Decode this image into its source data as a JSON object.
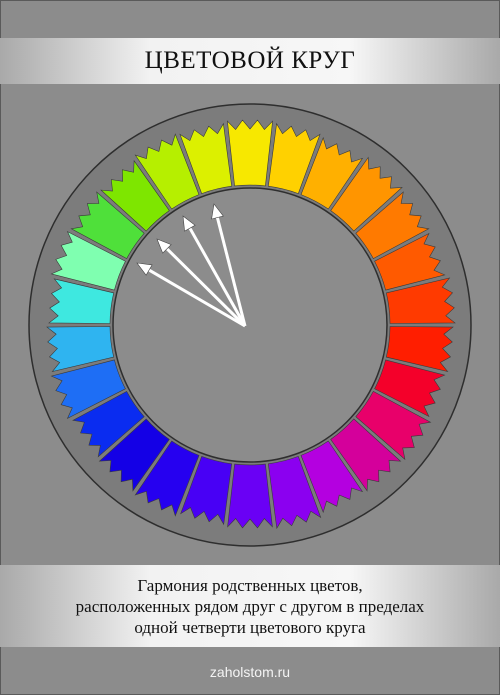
{
  "title": "ЦВЕТОВОЙ КРУГ",
  "caption": {
    "lines": [
      "Гармония родственных цветов,",
      "расположенных рядом друг с другом в пределах",
      "одной четверти цветового круга"
    ]
  },
  "footer": "zaholstom.ru",
  "wheel": {
    "segment_colors": [
      "#f7e800",
      "#ffd100",
      "#ffb000",
      "#ff9500",
      "#ff7a00",
      "#ff5a00",
      "#ff3a00",
      "#ff1e00",
      "#f4002a",
      "#e8006a",
      "#d4009b",
      "#b400e0",
      "#8b00f0",
      "#6a00f5",
      "#4800f5",
      "#2600f0",
      "#1400e6",
      "#0a2cf0",
      "#1e6ef5",
      "#2fb4f0",
      "#3ee8e0",
      "#7fffb0",
      "#4fe03a",
      "#7ee600",
      "#b6ef00",
      "#dcf000"
    ],
    "background_color": "#8c8c8c",
    "ring_edge_color": "#2e2e2e",
    "arrows": {
      "color": "#ffffff",
      "count": 4
    }
  }
}
